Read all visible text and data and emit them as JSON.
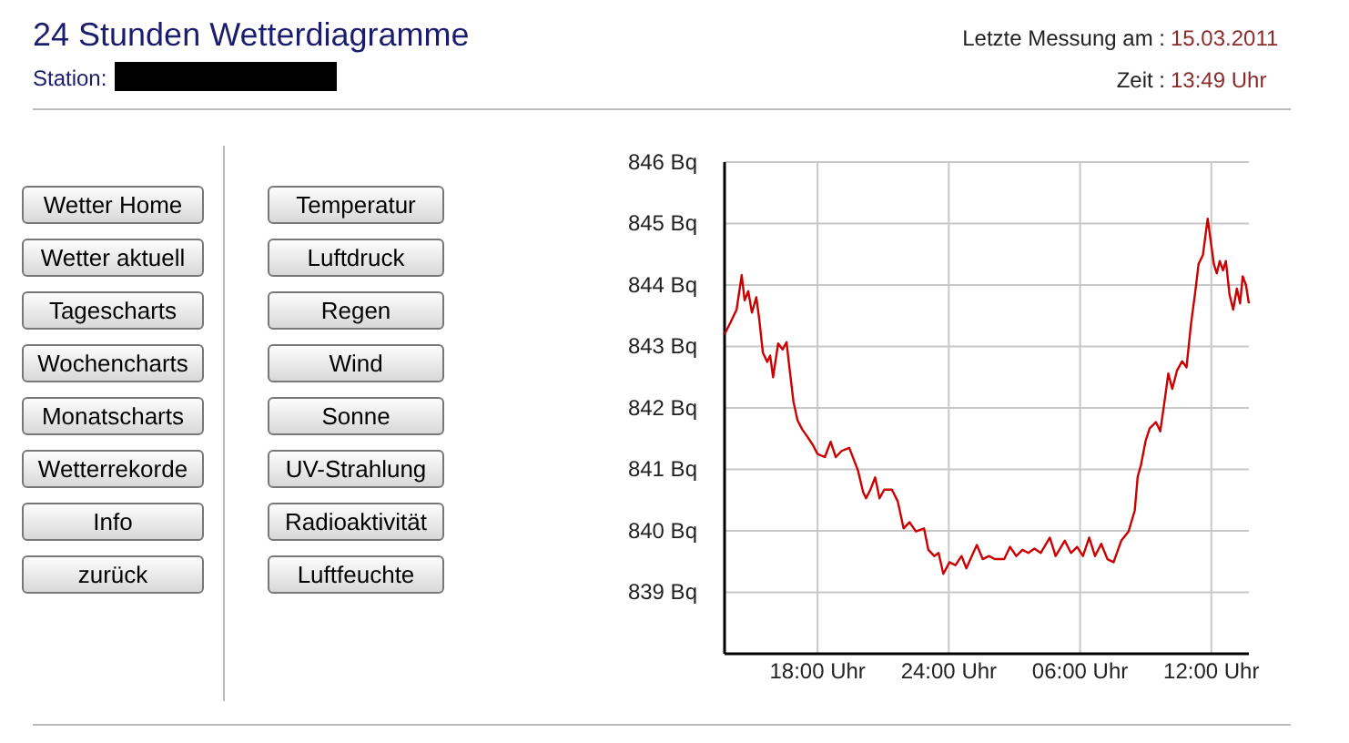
{
  "chart_data": {
    "type": "line",
    "title": "24 Stunden Wetterdiagramme",
    "annotations": [
      "Station:",
      "Letzte Messung am :",
      "15.03.2011",
      "Zeit :",
      "13:49 Uhr",
      "Wetter Home",
      "Wetter aktuell",
      "Tagescharts",
      "Wochencharts",
      "Monatscharts",
      "Wetterrekorde",
      "Info",
      "zurück",
      "Temperatur",
      "Luftdruck",
      "Regen",
      "Wind",
      "Sonne",
      "UV-Strahlung",
      "Radioaktivität",
      "Luftfeuchte"
    ],
    "x": [
      "2011-03-14T13:45",
      "2011-03-14T14:02",
      "2011-03-14T14:18",
      "2011-03-14T14:32",
      "2011-03-14T14:40",
      "2011-03-14T14:50",
      "2011-03-14T15:00",
      "2011-03-14T15:12",
      "2011-03-14T15:20",
      "2011-03-14T15:30",
      "2011-03-14T15:42",
      "2011-03-14T15:50",
      "2011-03-14T15:58",
      "2011-03-14T16:12",
      "2011-03-14T16:24",
      "2011-03-14T16:35",
      "2011-03-14T16:43",
      "2011-03-14T16:54",
      "2011-03-14T17:05",
      "2011-03-14T17:18",
      "2011-03-14T17:30",
      "2011-03-14T17:47",
      "2011-03-14T18:00",
      "2011-03-14T18:20",
      "2011-03-14T18:36",
      "2011-03-14T18:50",
      "2011-03-14T19:06",
      "2011-03-14T19:27",
      "2011-03-14T19:40",
      "2011-03-14T19:51",
      "2011-03-14T20:05",
      "2011-03-14T20:13",
      "2011-03-14T20:25",
      "2011-03-14T20:38",
      "2011-03-14T20:50",
      "2011-03-14T21:03",
      "2011-03-14T21:24",
      "2011-03-14T21:40",
      "2011-03-14T21:56",
      "2011-03-14T22:12",
      "2011-03-14T22:30",
      "2011-03-14T22:52",
      "2011-03-14T23:04",
      "2011-03-14T23:20",
      "2011-03-14T23:32",
      "2011-03-14T23:45",
      "2011-03-15T00:02",
      "2011-03-15T00:18",
      "2011-03-15T00:35",
      "2011-03-15T00:48",
      "2011-03-15T01:03",
      "2011-03-15T01:17",
      "2011-03-15T01:33",
      "2011-03-15T01:50",
      "2011-03-15T02:06",
      "2011-03-15T02:32",
      "2011-03-15T02:48",
      "2011-03-15T03:05",
      "2011-03-15T03:22",
      "2011-03-15T03:38",
      "2011-03-15T03:55",
      "2011-03-15T04:12",
      "2011-03-15T04:37",
      "2011-03-15T04:53",
      "2011-03-15T05:18",
      "2011-03-15T05:35",
      "2011-03-15T05:52",
      "2011-03-15T06:08",
      "2011-03-15T06:25",
      "2011-03-15T06:41",
      "2011-03-15T06:58",
      "2011-03-15T07:15",
      "2011-03-15T07:32",
      "2011-03-15T07:53",
      "2011-03-15T08:13",
      "2011-03-15T08:30",
      "2011-03-15T08:38",
      "2011-03-15T08:47",
      "2011-03-15T09:00",
      "2011-03-15T09:11",
      "2011-03-15T09:28",
      "2011-03-15T09:40",
      "2011-03-15T09:53",
      "2011-03-15T10:02",
      "2011-03-15T10:13",
      "2011-03-15T10:26",
      "2011-03-15T10:40",
      "2011-03-15T10:52",
      "2011-03-15T11:04",
      "2011-03-15T11:17",
      "2011-03-15T11:25",
      "2011-03-15T11:37",
      "2011-03-15T11:50",
      "2011-03-15T11:58",
      "2011-03-15T12:07",
      "2011-03-15T12:15",
      "2011-03-15T12:23",
      "2011-03-15T12:32",
      "2011-03-15T12:40",
      "2011-03-15T12:50",
      "2011-03-15T13:00",
      "2011-03-15T13:10",
      "2011-03-15T13:19",
      "2011-03-15T13:26",
      "2011-03-15T13:35",
      "2011-03-15T13:43"
    ],
    "series": [
      {
        "color": "#cc0000",
        "values": [
          843.2,
          843.4,
          843.6,
          844.16,
          843.75,
          843.9,
          843.55,
          843.8,
          843.45,
          842.9,
          842.75,
          842.85,
          842.5,
          843.05,
          842.95,
          843.07,
          842.65,
          842.1,
          841.8,
          841.65,
          841.55,
          841.4,
          841.25,
          841.2,
          841.45,
          841.2,
          841.3,
          841.35,
          841.15,
          840.98,
          840.63,
          840.53,
          840.67,
          840.87,
          840.53,
          840.67,
          840.67,
          840.48,
          840.04,
          840.14,
          839.99,
          840.04,
          839.69,
          839.59,
          839.64,
          839.3,
          839.49,
          839.44,
          839.59,
          839.39,
          839.59,
          839.77,
          839.54,
          839.59,
          839.54,
          839.54,
          839.74,
          839.59,
          839.69,
          839.64,
          839.71,
          839.64,
          839.89,
          839.59,
          839.84,
          839.64,
          839.74,
          839.59,
          839.89,
          839.59,
          839.79,
          839.54,
          839.49,
          839.84,
          839.99,
          840.33,
          840.88,
          841.07,
          841.47,
          841.67,
          841.77,
          841.62,
          842.16,
          842.56,
          842.31,
          842.61,
          842.76,
          842.66,
          843.35,
          843.94,
          844.34,
          844.49,
          845.08,
          844.73,
          844.34,
          844.19,
          844.39,
          844.24,
          844.39,
          843.84,
          843.6,
          843.94,
          843.7,
          844.14,
          844.0,
          843.7
        ]
      }
    ],
    "xlim": [
      "2011-03-14T13:45",
      "2011-03-15T13:43"
    ],
    "xticks": [
      {
        "value": "2011-03-14T18:00",
        "label": "18:00 Uhr"
      },
      {
        "value": "2011-03-15T00:00",
        "label": "24:00 Uhr"
      },
      {
        "value": "2011-03-15T06:00",
        "label": "06:00 Uhr"
      },
      {
        "value": "2011-03-15T12:00",
        "label": "12:00 Uhr"
      }
    ],
    "ylim": [
      838,
      846
    ],
    "yticks": [
      {
        "value": 839,
        "label": "839 Bq"
      },
      {
        "value": 840,
        "label": "840 Bq"
      },
      {
        "value": 841,
        "label": "841 Bq"
      },
      {
        "value": 842,
        "label": "842 Bq"
      },
      {
        "value": 843,
        "label": "843 Bq"
      },
      {
        "value": 844,
        "label": "844 Bq"
      },
      {
        "value": 845,
        "label": "845 Bq"
      },
      {
        "value": 846,
        "label": "846 Bq"
      }
    ],
    "grid": true,
    "marker": "none",
    "line_style": "solid"
  }
}
